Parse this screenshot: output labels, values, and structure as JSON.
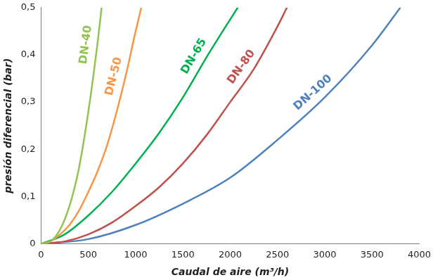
{
  "chart_data": {
    "type": "line",
    "xlabel": "Caudal de aire (m³/h)",
    "ylabel": "presión diferencial (bar)",
    "xlim": [
      0,
      4000
    ],
    "xticks": [
      0,
      500,
      1000,
      1500,
      2000,
      2500,
      3000,
      3500,
      4000
    ],
    "ylim": [
      0,
      0.5
    ],
    "yticks": [
      0,
      {
        "value": 0.1,
        "label": "0,1"
      },
      {
        "value": 0.2,
        "label": "0,2"
      },
      {
        "value": 0.3,
        "label": "0,3"
      },
      {
        "value": 0.4,
        "label": "0,4"
      },
      {
        "value": 0.5,
        "label": "0,5"
      }
    ],
    "grid": false,
    "series": [
      {
        "name": "DN-40",
        "color": "#92c353",
        "x": [
          0,
          100,
          200,
          300,
          400,
          500,
          600,
          640
        ],
        "values": [
          0,
          0.005,
          0.03,
          0.08,
          0.16,
          0.28,
          0.43,
          0.5
        ]
      },
      {
        "name": "DN-50",
        "color": "#f79646",
        "x": [
          0,
          100,
          200,
          300,
          400,
          500,
          600,
          700,
          800,
          900,
          1000,
          1060
        ],
        "values": [
          0,
          0.005,
          0.02,
          0.04,
          0.07,
          0.11,
          0.155,
          0.21,
          0.28,
          0.36,
          0.45,
          0.5
        ]
      },
      {
        "name": "DN-65",
        "color": "#00b050",
        "x": [
          0,
          250,
          500,
          750,
          1000,
          1250,
          1500,
          1750,
          2000,
          2080
        ],
        "values": [
          0,
          0.02,
          0.06,
          0.11,
          0.17,
          0.235,
          0.31,
          0.395,
          0.475,
          0.5
        ]
      },
      {
        "name": "DN-80",
        "color": "#c0504d",
        "x": [
          0,
          250,
          500,
          750,
          1000,
          1250,
          1500,
          1750,
          2000,
          2250,
          2500,
          2600
        ],
        "values": [
          0,
          0.005,
          0.02,
          0.045,
          0.08,
          0.12,
          0.17,
          0.23,
          0.3,
          0.37,
          0.46,
          0.5
        ]
      },
      {
        "name": "DN-100",
        "color": "#4f81bd",
        "x": [
          0,
          500,
          1000,
          1500,
          2000,
          2500,
          3000,
          3500,
          3800
        ],
        "values": [
          0,
          0.01,
          0.04,
          0.085,
          0.14,
          0.22,
          0.31,
          0.42,
          0.5
        ]
      }
    ]
  }
}
